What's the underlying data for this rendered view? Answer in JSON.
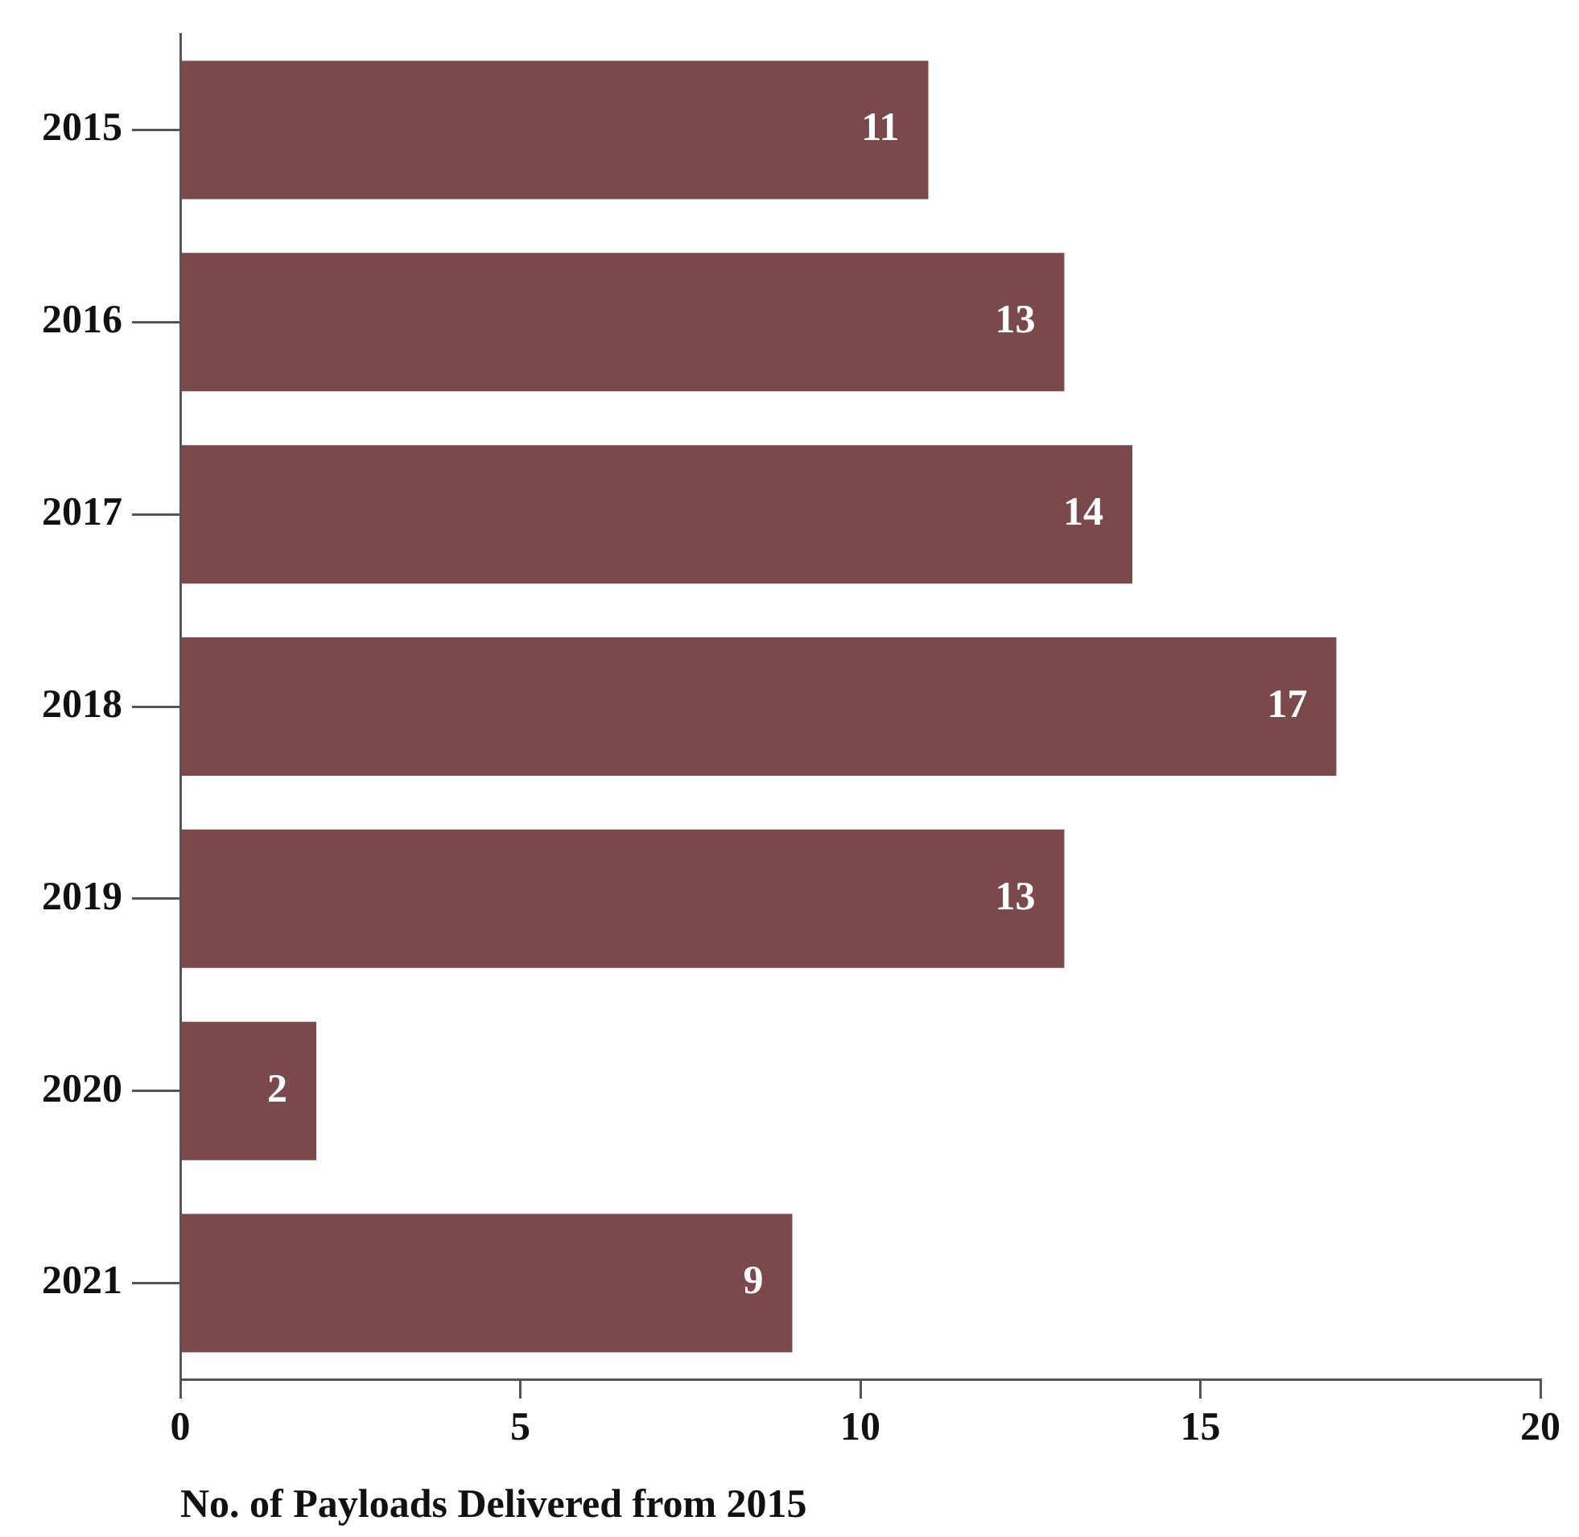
{
  "chart_data": {
    "type": "bar",
    "orientation": "horizontal",
    "categories": [
      "2015",
      "2016",
      "2017",
      "2018",
      "2019",
      "2020",
      "2021"
    ],
    "values": [
      11,
      13,
      14,
      17,
      13,
      2,
      9
    ],
    "color": "#7a494c",
    "xlim": [
      0,
      20
    ],
    "xticks": [
      0,
      5,
      10,
      15,
      20
    ],
    "xlabel": "No. of Payloads Delivered from 2015",
    "data_labels": true,
    "grid": false,
    "legend": false
  }
}
